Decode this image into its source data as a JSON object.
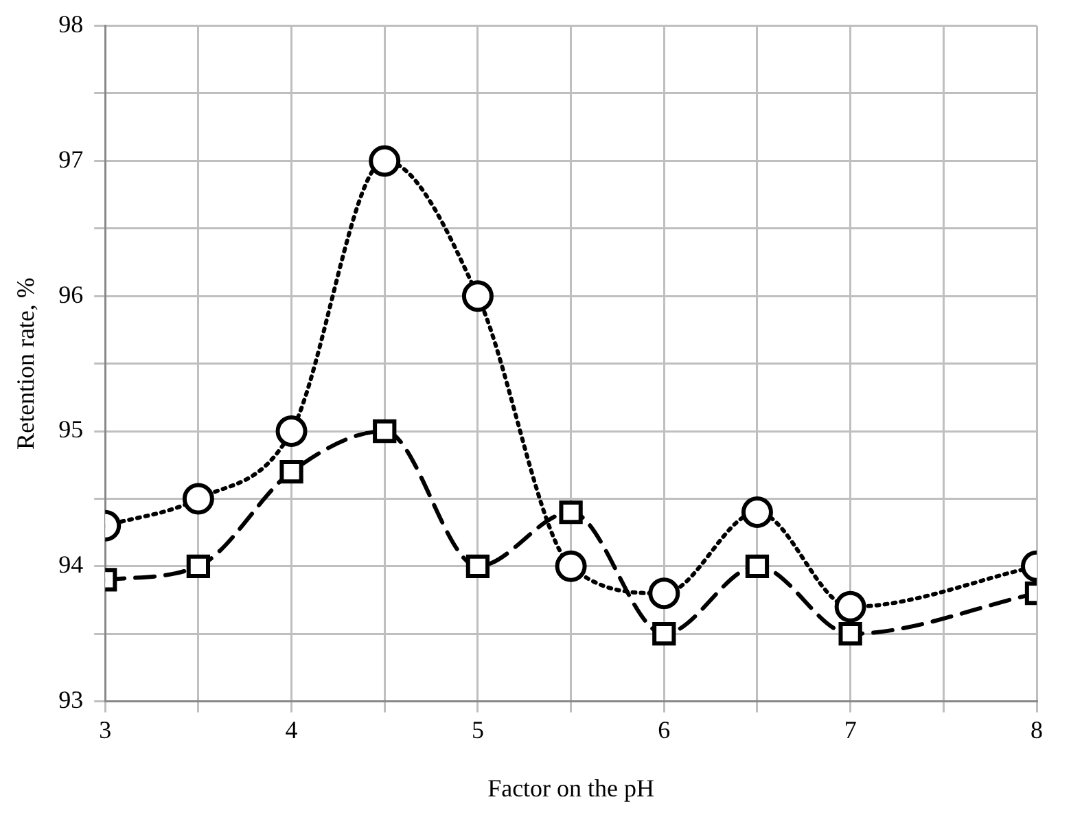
{
  "chart_data": {
    "type": "line",
    "xlabel": "Factor on the pH",
    "ylabel": "Retention rate, %",
    "x": [
      3,
      3.5,
      4,
      4.5,
      5,
      5.5,
      6,
      6.5,
      7,
      8
    ],
    "series": [
      {
        "color": "#000000",
        "marker": "circle",
        "line_style": "dotted",
        "values": [
          94.3,
          94.5,
          95.0,
          97.0,
          96.0,
          94.0,
          93.8,
          94.4,
          93.7,
          94.0
        ]
      },
      {
        "color": "#000000",
        "marker": "square",
        "line_style": "dashed",
        "values": [
          93.9,
          94.0,
          94.7,
          95.0,
          94.0,
          94.4,
          93.5,
          94.0,
          93.5,
          93.8
        ]
      }
    ],
    "xlim": [
      3,
      8
    ],
    "xticks": [
      3,
      {
        "value": 3.5,
        "label": null
      },
      4,
      {
        "value": 4.5,
        "label": null
      },
      5,
      {
        "value": 5.5,
        "label": null
      },
      6,
      {
        "value": 6.5,
        "label": null
      },
      7,
      {
        "value": 7.5,
        "label": null
      },
      8
    ],
    "ylim": [
      93,
      98
    ],
    "yticks": [
      93,
      {
        "value": 93.5,
        "label": null
      },
      94,
      {
        "value": 94.5,
        "label": null
      },
      95,
      {
        "value": 95.5,
        "label": null
      },
      96,
      {
        "value": 96.5,
        "label": null
      },
      97,
      {
        "value": 97.5,
        "label": null
      },
      98
    ],
    "grid": true,
    "legend": false
  }
}
